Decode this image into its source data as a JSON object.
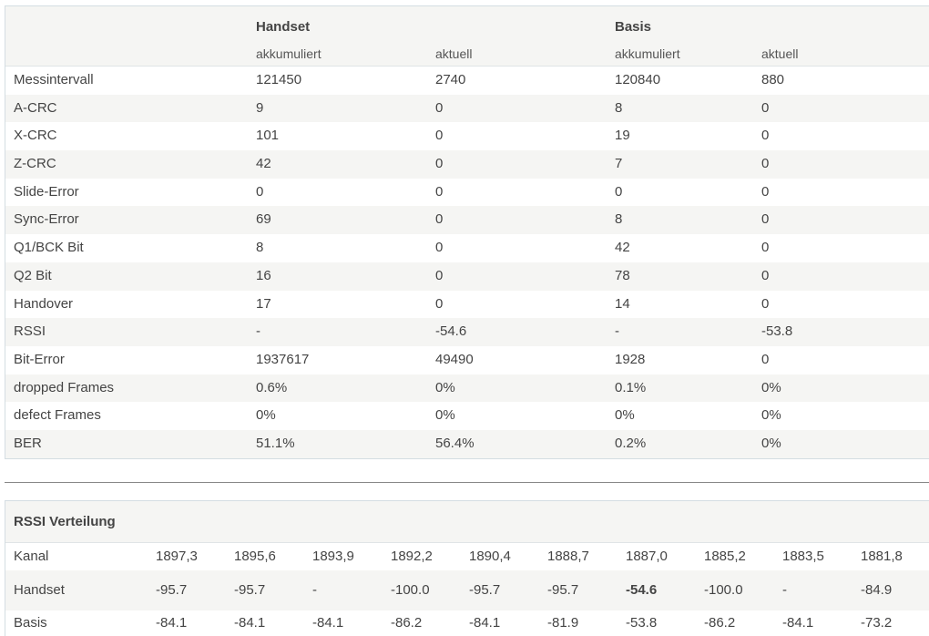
{
  "stats": {
    "groups": {
      "handset": "Handset",
      "basis": "Basis"
    },
    "subheaders": [
      "akkumuliert",
      "aktuell",
      "akkumuliert",
      "aktuell"
    ],
    "rows": [
      [
        "Messintervall",
        "121450",
        "2740",
        "120840",
        "880"
      ],
      [
        "A-CRC",
        "9",
        "0",
        "8",
        "0"
      ],
      [
        "X-CRC",
        "101",
        "0",
        "19",
        "0"
      ],
      [
        "Z-CRC",
        "42",
        "0",
        "7",
        "0"
      ],
      [
        "Slide-Error",
        "0",
        "0",
        "0",
        "0"
      ],
      [
        "Sync-Error",
        "69",
        "0",
        "8",
        "0"
      ],
      [
        "Q1/BCK Bit",
        "8",
        "0",
        "42",
        "0"
      ],
      [
        "Q2 Bit",
        "16",
        "0",
        "78",
        "0"
      ],
      [
        "Handover",
        "17",
        "0",
        "14",
        "0"
      ],
      [
        "RSSI",
        "-",
        "-54.6",
        "-",
        "-53.8"
      ],
      [
        "Bit-Error",
        "1937617",
        "49490",
        "1928",
        "0"
      ],
      [
        "dropped Frames",
        "0.6%",
        "0%",
        "0.1%",
        "0%"
      ],
      [
        "defect Frames",
        "0%",
        "0%",
        "0%",
        "0%"
      ],
      [
        "BER",
        "51.1%",
        "56.4%",
        "0.2%",
        "0%"
      ]
    ]
  },
  "rssi": {
    "title": "RSSI Verteilung",
    "rows": [
      [
        "Kanal",
        "1897,3",
        "1895,6",
        "1893,9",
        "1892,2",
        "1890,4",
        "1888,7",
        "1887,0",
        "1885,2",
        "1883,5",
        "1881,8"
      ],
      [
        "Handset",
        "-95.7",
        "-95.7",
        "-",
        "-100.0",
        "-95.7",
        "-95.7",
        "-54.6",
        "-100.0",
        "-",
        "-84.9"
      ],
      [
        "Basis",
        "-84.1",
        "-84.1",
        "-84.1",
        "-86.2",
        "-84.1",
        "-81.9",
        "-53.8",
        "-86.2",
        "-84.1",
        "-73.2"
      ]
    ]
  }
}
